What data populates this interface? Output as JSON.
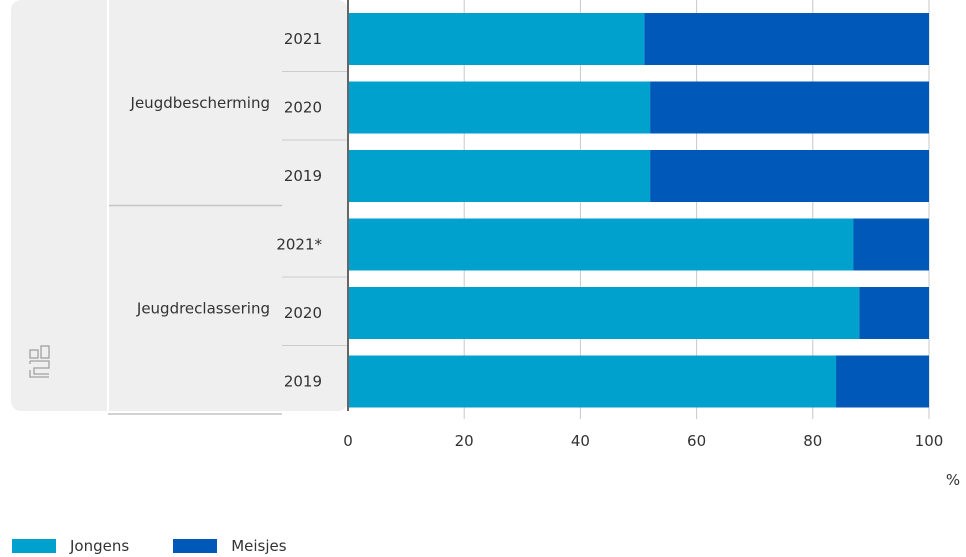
{
  "chart_data": {
    "type": "bar",
    "orientation": "horizontal",
    "stacked": true,
    "groups": [
      {
        "name": "Jeugdbescherming",
        "categories": [
          "2021",
          "2020",
          "2019"
        ]
      },
      {
        "name": "Jeugdreclassering",
        "categories": [
          "2021*",
          "2020",
          "2019"
        ]
      }
    ],
    "series": [
      {
        "name": "Jongens",
        "color": "#00a1cd",
        "values": [
          51,
          52,
          52,
          87,
          88,
          84
        ]
      },
      {
        "name": "Meisjes",
        "color": "#0058b8",
        "values": [
          49,
          48,
          48,
          13,
          12,
          16
        ]
      }
    ],
    "x_ticks": [
      "0",
      "20",
      "40",
      "60",
      "80",
      "100"
    ],
    "xlim": [
      0,
      100
    ],
    "unit": "%",
    "grid": true,
    "legend_position": "bottom-left",
    "logo_icon": "cbs-logo-icon"
  }
}
